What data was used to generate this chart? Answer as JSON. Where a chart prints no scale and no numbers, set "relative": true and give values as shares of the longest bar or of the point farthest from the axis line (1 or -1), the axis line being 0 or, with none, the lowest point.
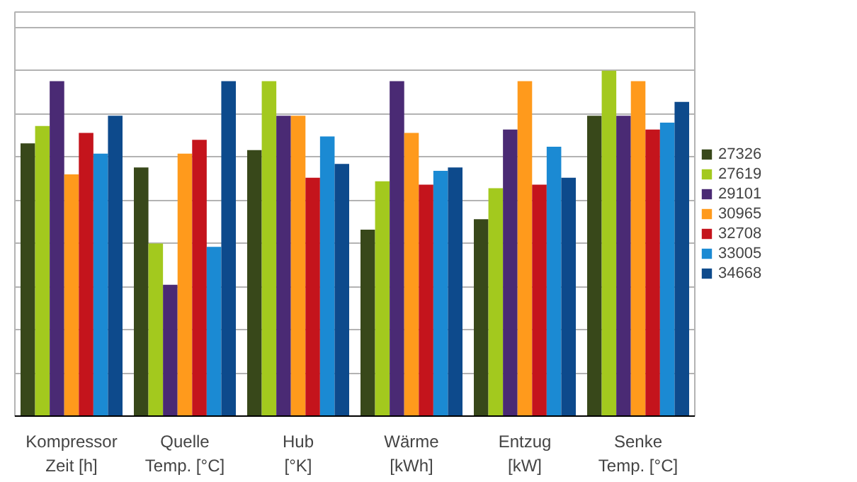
{
  "chart_data": {
    "type": "bar",
    "relative": true,
    "grid": "y",
    "legend": "right",
    "categories": [
      "Kompressor\nZeit [h]",
      "Quelle\nTemp. [°C]",
      "Hub\n[°K]",
      "Wärme\n[kWh]",
      "Entzug\n[kW]",
      "Senke\nTemp. [°C]"
    ],
    "series": [
      {
        "name": "27326",
        "color": "#38481a",
        "values": [
          0.79,
          0.72,
          0.77,
          0.54,
          0.57,
          0.87
        ]
      },
      {
        "name": "27619",
        "color": "#a3c91e",
        "values": [
          0.84,
          0.5,
          0.97,
          0.68,
          0.66,
          1.0
        ]
      },
      {
        "name": "29101",
        "color": "#4a2a74",
        "values": [
          0.97,
          0.38,
          0.87,
          0.97,
          0.83,
          0.87
        ]
      },
      {
        "name": "30965",
        "color": "#ff9a1c",
        "values": [
          0.7,
          0.76,
          0.87,
          0.82,
          0.97,
          0.97
        ]
      },
      {
        "name": "32708",
        "color": "#c4141c",
        "values": [
          0.82,
          0.8,
          0.69,
          0.67,
          0.67,
          0.83
        ]
      },
      {
        "name": "33005",
        "color": "#1b8ad3",
        "values": [
          0.76,
          0.49,
          0.81,
          0.71,
          0.78,
          0.85
        ]
      },
      {
        "name": "34668",
        "color": "#0d4a8c",
        "values": [
          0.87,
          0.97,
          0.73,
          0.72,
          0.69,
          0.91
        ]
      }
    ]
  }
}
